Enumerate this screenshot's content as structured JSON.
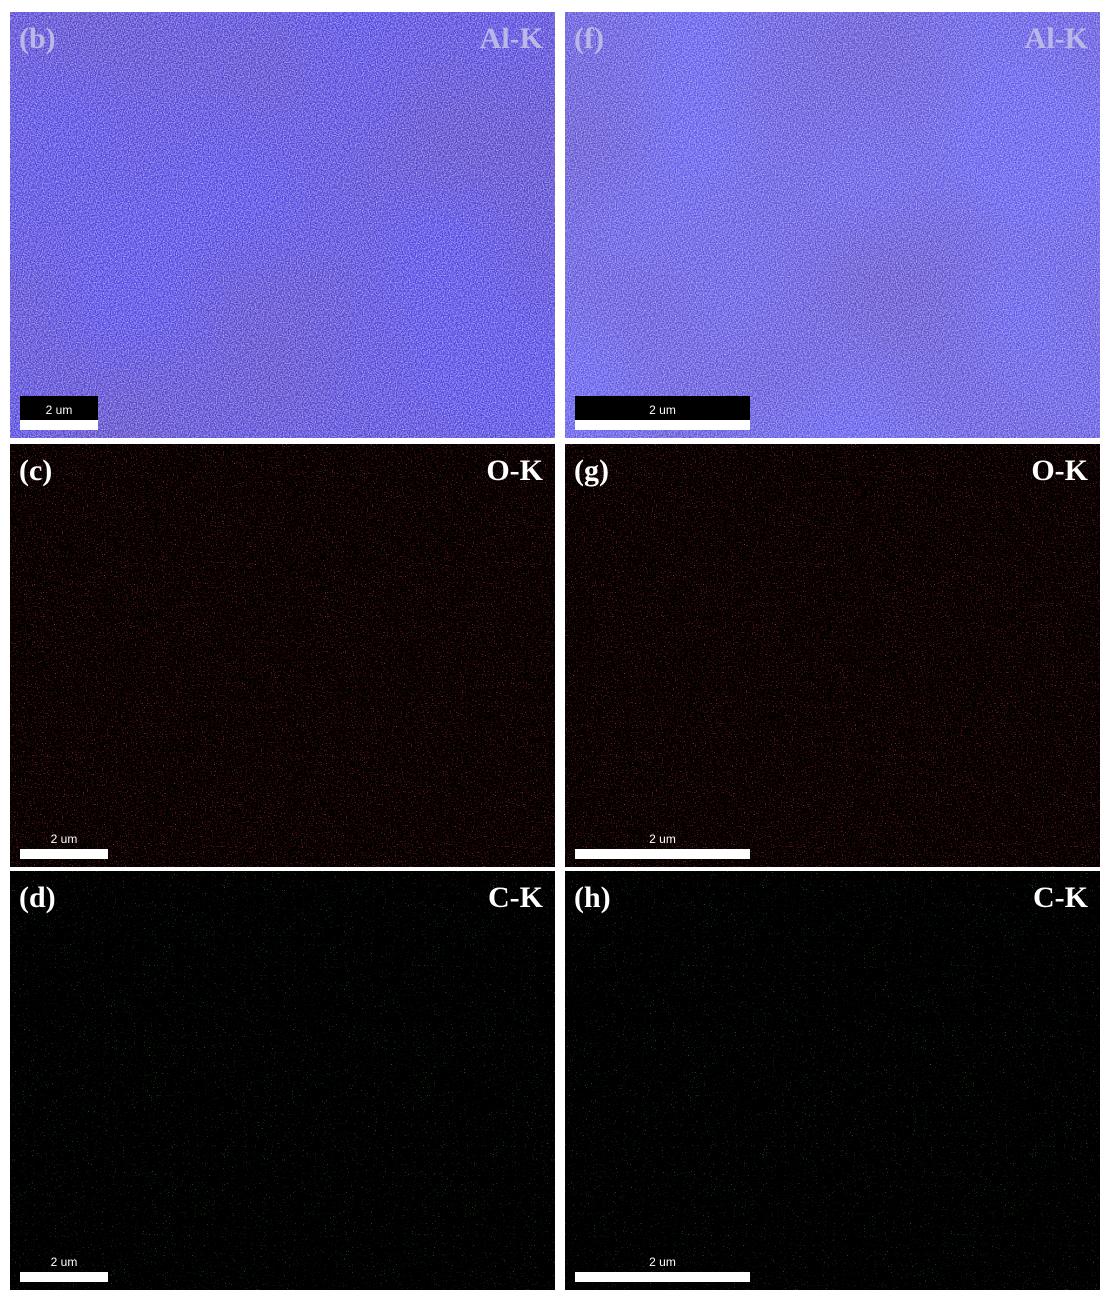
{
  "panels": [
    {
      "label": "(b)",
      "element": "Al-K",
      "scale": "2 um"
    },
    {
      "label": "(f)",
      "element": "Al-K",
      "scale": "2 um"
    },
    {
      "label": "(c)",
      "element": "O-K",
      "scale": "2 um"
    },
    {
      "label": "(g)",
      "element": "O-K",
      "scale": "2 um"
    },
    {
      "label": "(d)",
      "element": "C-K",
      "scale": "2 um"
    },
    {
      "label": "(h)",
      "element": "C-K",
      "scale": "2 um"
    }
  ]
}
